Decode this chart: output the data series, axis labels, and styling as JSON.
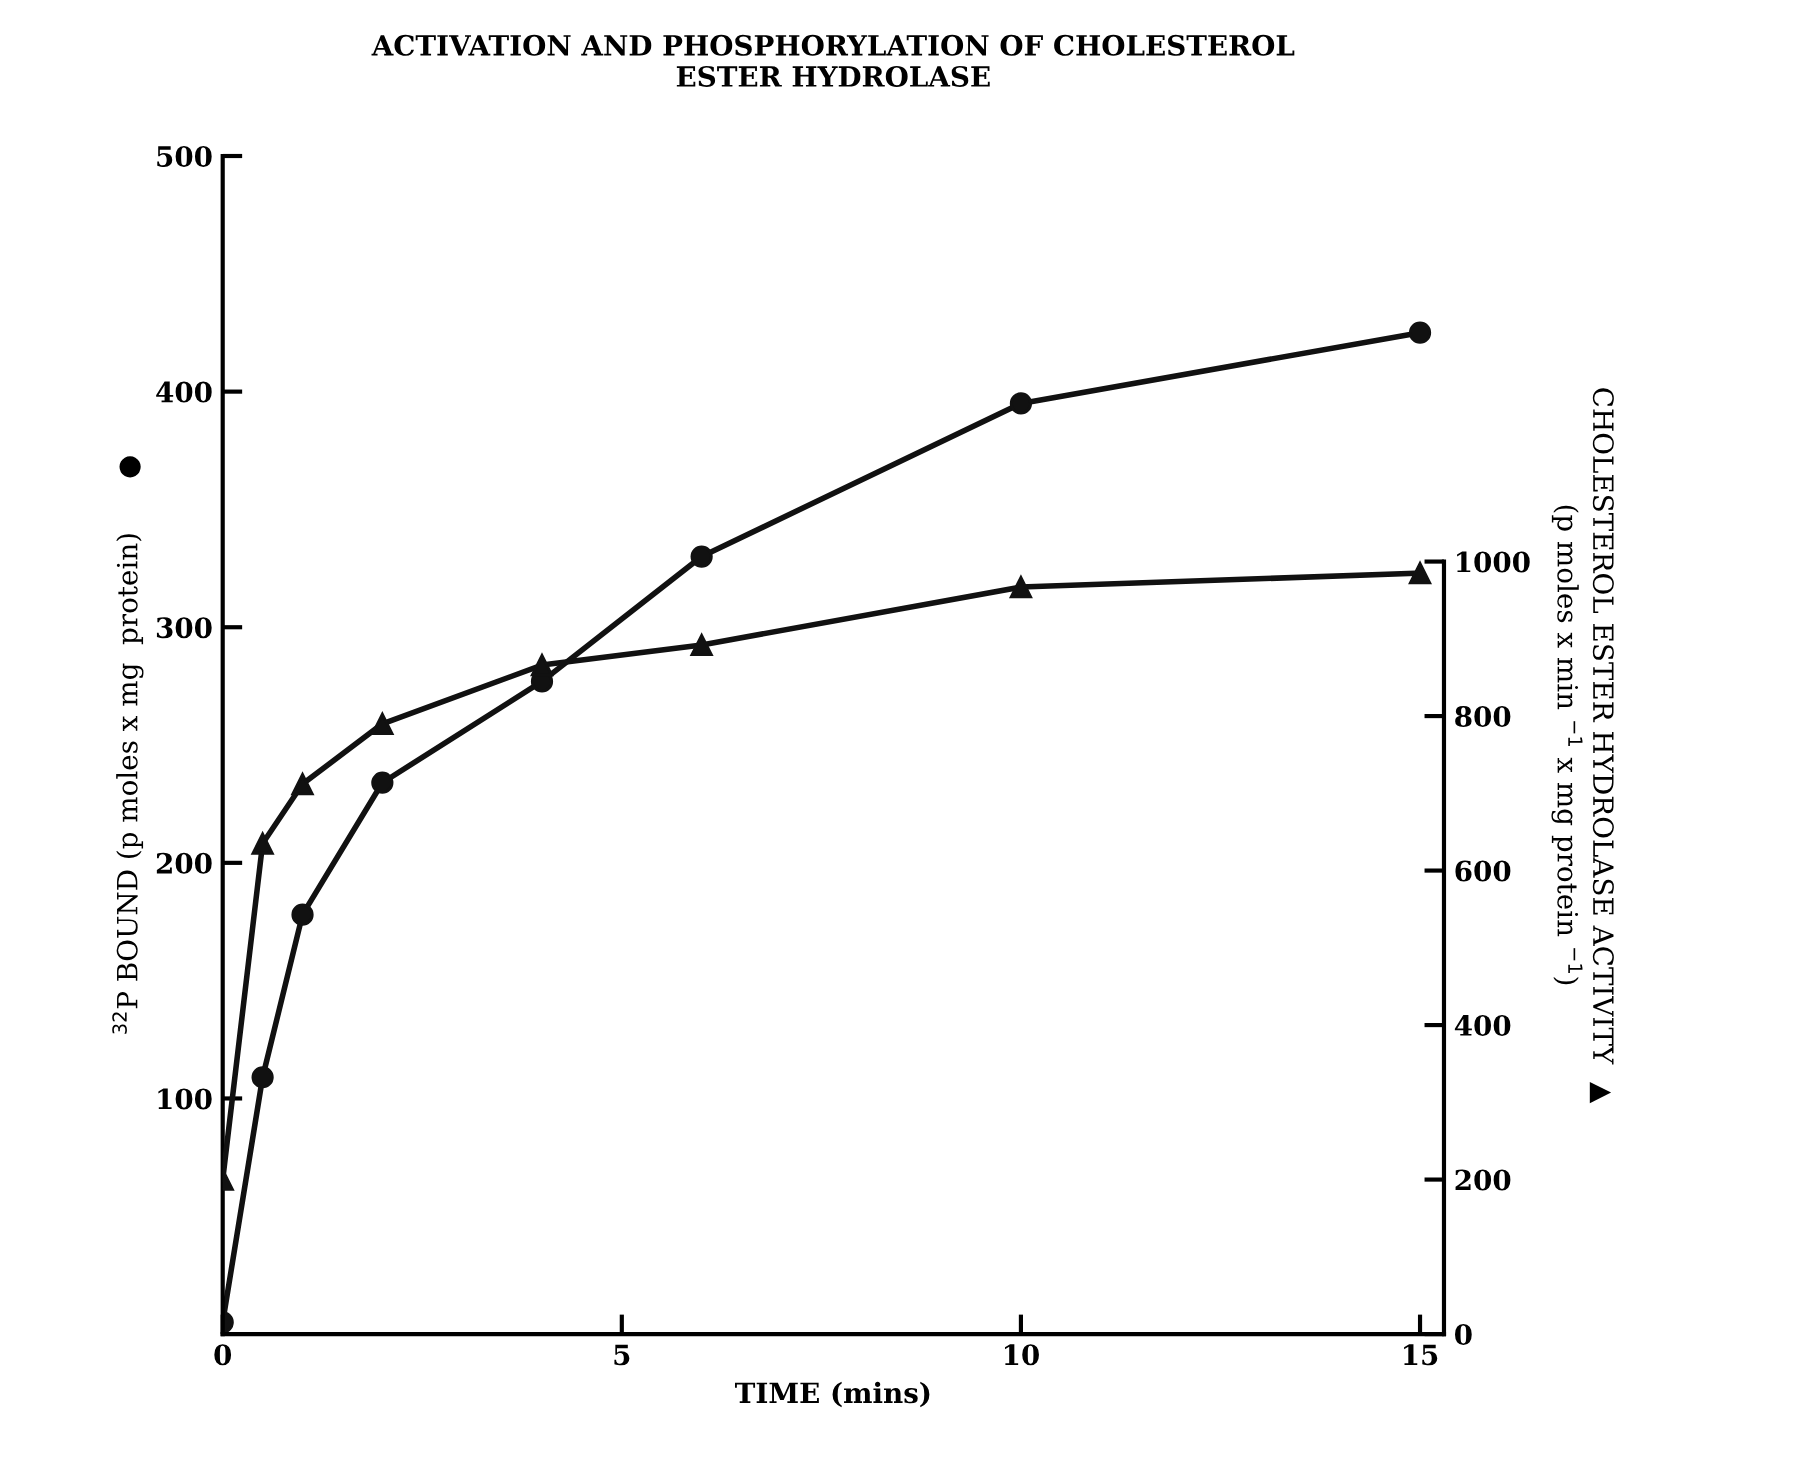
{
  "chart_data": {
    "type": "line",
    "title": "ACTIVATION AND PHOSPHORYLATION OF CHOLESTEROL\nESTER HYDROLASE",
    "xlabel": "TIME (mins)",
    "ylabel": "$^{32}$P BOUND (p moles x mg  protein)      ●",
    "y2label": "CHOLESTEROL ESTER HYDROLASE ACTIVITY  ▲\n(p moles x min $^{−1}$ x mg protein $^{−1}$)",
    "x": [
      0,
      0.5,
      1,
      2,
      4,
      6,
      10,
      15
    ],
    "series": [
      {
        "color": "#111111",
        "marker": "circle",
        "values": [
          5,
          109,
          178,
          234,
          277,
          330,
          395,
          425
        ]
      },
      {
        "color": "#111111",
        "marker": "triangle",
        "axis": "y2",
        "values": [
          200,
          635,
          712,
          790,
          866,
          892,
          967,
          985
        ]
      }
    ],
    "xlim": [
      0,
      15.3
    ],
    "xticks": [
      0,
      5,
      10,
      15
    ],
    "ylim": [
      0,
      500
    ],
    "yticks": [
      100,
      200,
      300,
      400,
      500
    ],
    "y2lim": [
      0,
      1525
    ],
    "y2ticks": [
      0,
      200,
      400,
      600,
      800,
      1000
    ],
    "grid": false,
    "legend": false,
    "line_style": "solid"
  }
}
